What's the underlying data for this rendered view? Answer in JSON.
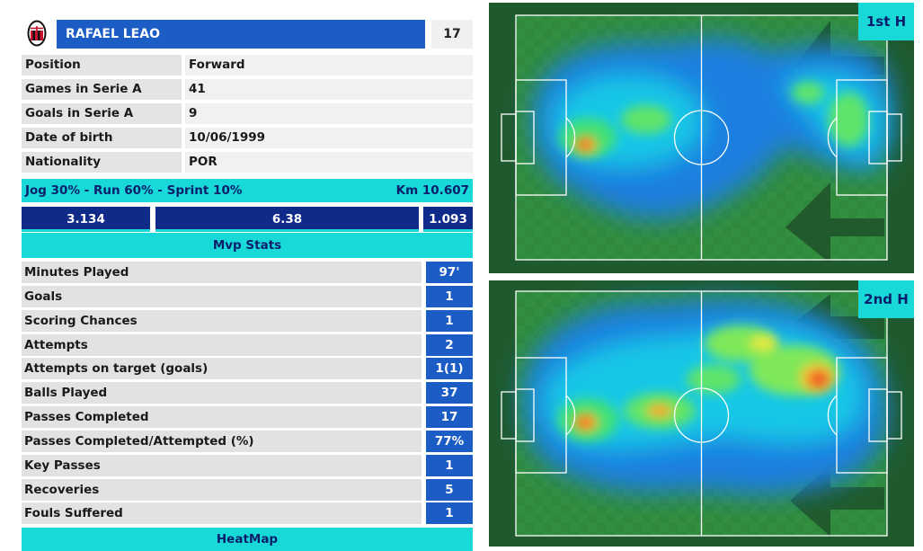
{
  "player": {
    "name": "RAFAEL LEAO",
    "number": "17",
    "crest_icon": "ac-milan-crest-icon"
  },
  "info": [
    {
      "label": "Position",
      "value": "Forward"
    },
    {
      "label": "Games in Serie A",
      "value": "41"
    },
    {
      "label": "Goals in Serie A",
      "value": "9"
    },
    {
      "label": "Date of birth",
      "value": "10/06/1999"
    },
    {
      "label": "Nationality",
      "value": "POR"
    }
  ],
  "running": {
    "split": "Jog 30%  -  Run 60%  -  Sprint 10%",
    "km": "Km 10.607",
    "values": [
      "3.134",
      "6.38",
      "1.093"
    ]
  },
  "mvp_title": "Mvp Stats",
  "stats": [
    {
      "label": "Minutes Played",
      "value": "97'"
    },
    {
      "label": "Goals",
      "value": "1"
    },
    {
      "label": "Scoring Chances",
      "value": "1"
    },
    {
      "label": "Attempts",
      "value": "2"
    },
    {
      "label": "Attempts on target (goals)",
      "value": "1(1)"
    },
    {
      "label": "Balls Played",
      "value": "37"
    },
    {
      "label": "Passes Completed",
      "value": "17"
    },
    {
      "label": "Passes Completed/Attempted (%)",
      "value": "77%"
    },
    {
      "label": "Key Passes",
      "value": "1"
    },
    {
      "label": "Recoveries",
      "value": "5"
    },
    {
      "label": "Fouls Suffered",
      "value": "1"
    }
  ],
  "heatmap_title": "HeatMap",
  "heatmaps": [
    {
      "half": "1st H",
      "attack_direction": "left"
    },
    {
      "half": "2nd H",
      "attack_direction": "left"
    }
  ],
  "colors": {
    "name_bar": "#1c5cc5",
    "accent_cyan": "#18d8d8",
    "distance_bar": "#0f2a88",
    "pitch": "#2f8a3c"
  }
}
